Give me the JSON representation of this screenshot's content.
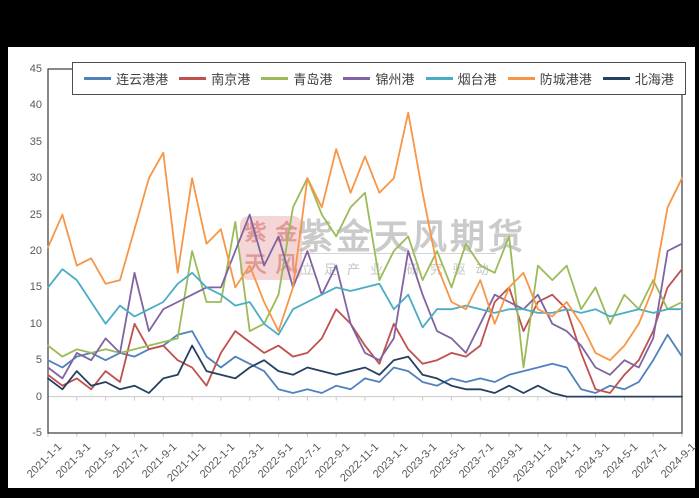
{
  "watermark": {
    "brand": "紫金天风期货",
    "slogan": "立足产业 研究驱动",
    "seal_chars": [
      "紫",
      "金",
      "天",
      "风"
    ]
  },
  "chart_data": {
    "type": "line",
    "title": "",
    "legend_position": "top",
    "grid": "category axis line at 0 only, plot area framed",
    "y_axis": {
      "min": -5,
      "max": 45,
      "tick_step": 5,
      "tick_labels": [
        "45",
        "40",
        "35",
        "30",
        "25",
        "20",
        "15",
        "10",
        "5",
        "0",
        "-5"
      ]
    },
    "x_axis": {
      "start": "2021-1-1",
      "end": "2024-9-1",
      "points_step": "monthly",
      "tick_every_points": 2,
      "tick_labels": [
        "2021-1-1",
        "2021-3-1",
        "2021-5-1",
        "2021-7-1",
        "2021-9-1",
        "2021-11-1",
        "2022-1-1",
        "2022-3-1",
        "2022-5-1",
        "2022-7-1",
        "2022-9-1",
        "2022-11-1",
        "2023-1-1",
        "2023-3-1",
        "2023-5-1",
        "2023-7-1",
        "2023-9-1",
        "2023-11-1",
        "2024-1-1",
        "2024-3-1",
        "2024-5-1",
        "2024-7-1",
        "2024-9-1"
      ]
    },
    "series": [
      {
        "name": "连云港港",
        "color": "#4F81BD",
        "values": [
          5,
          4,
          5.5,
          6,
          5,
          6,
          5.5,
          6.5,
          7,
          8.5,
          9,
          5.5,
          4,
          5.5,
          4.5,
          3.5,
          1,
          0.5,
          1,
          0.5,
          1.5,
          1,
          2.5,
          2,
          4,
          3.5,
          2,
          1.5,
          2.5,
          2,
          2.5,
          2,
          3,
          3.5,
          4,
          4.5,
          4,
          1,
          0.5,
          1.5,
          1,
          2,
          5,
          8.5,
          5.5
        ]
      },
      {
        "name": "南京港",
        "color": "#C0504D",
        "values": [
          3,
          1.5,
          2.5,
          1,
          3.5,
          2,
          10,
          6.5,
          7,
          5,
          4,
          1.5,
          6,
          9,
          7.5,
          6,
          7,
          5.5,
          6,
          8,
          12,
          10,
          7,
          4.5,
          10,
          6.5,
          4.5,
          5,
          6,
          5.5,
          7,
          13,
          15,
          9,
          13,
          14,
          12,
          6,
          1,
          0.5,
          3,
          5,
          9,
          15,
          17.5
        ]
      },
      {
        "name": "青岛港",
        "color": "#9BBB59",
        "values": [
          7,
          5.5,
          6.5,
          6,
          6.5,
          6,
          6.5,
          7,
          7.5,
          8,
          20,
          13,
          13,
          24,
          9,
          10,
          14,
          26,
          30,
          25,
          22,
          26,
          28,
          16,
          20,
          22,
          16,
          20,
          15,
          21,
          18,
          17,
          22,
          4,
          18,
          16,
          18,
          12,
          15,
          10,
          14,
          12,
          16,
          12,
          13
        ]
      },
      {
        "name": "锦州港",
        "color": "#8064A2",
        "values": [
          4,
          2.5,
          6,
          5,
          8,
          6,
          17,
          9,
          12,
          13,
          14,
          15,
          15,
          20,
          25,
          18,
          22,
          15,
          20,
          14,
          18,
          10,
          6,
          5,
          8,
          20,
          14,
          9,
          8,
          6,
          10,
          14,
          13,
          12,
          14,
          10,
          9,
          7,
          4,
          3,
          5,
          4,
          8,
          20,
          21
        ]
      },
      {
        "name": "烟台港",
        "color": "#4BACC6",
        "values": [
          15,
          17.5,
          16,
          13,
          10,
          12.5,
          11,
          12,
          13,
          15.5,
          17,
          15,
          14,
          12.5,
          13,
          10,
          8.5,
          12,
          13,
          14,
          15,
          14.5,
          15,
          15.5,
          12,
          14,
          9.5,
          12,
          12,
          12.5,
          12,
          11.5,
          12,
          12,
          11.5,
          11.5,
          12,
          11.5,
          12,
          11,
          11.5,
          12,
          11.5,
          12,
          12
        ]
      },
      {
        "name": "防城港港",
        "color": "#F79646",
        "values": [
          20.5,
          25,
          18,
          19,
          15.5,
          16,
          23,
          30,
          33.5,
          17,
          30,
          21,
          23,
          15,
          18,
          13,
          9,
          15,
          30,
          26,
          34,
          28,
          33,
          28,
          30,
          39,
          28,
          18,
          13,
          12,
          16,
          10,
          15,
          17,
          12,
          11,
          13,
          10,
          6,
          5,
          7,
          10,
          15,
          26,
          30
        ]
      },
      {
        "name": "北海港",
        "color": "#254061",
        "values": [
          2.5,
          1,
          3.5,
          1.5,
          2,
          1,
          1.5,
          0.5,
          2.5,
          3,
          7,
          3.5,
          3,
          2.5,
          4,
          5,
          3.5,
          3,
          4,
          3.5,
          3,
          3.5,
          4,
          3,
          5,
          5.5,
          3,
          2.5,
          1.5,
          1,
          1,
          0.5,
          1.5,
          0.5,
          1.5,
          0.5,
          0,
          0,
          0,
          0,
          0,
          0,
          0,
          0,
          0
        ]
      }
    ]
  }
}
